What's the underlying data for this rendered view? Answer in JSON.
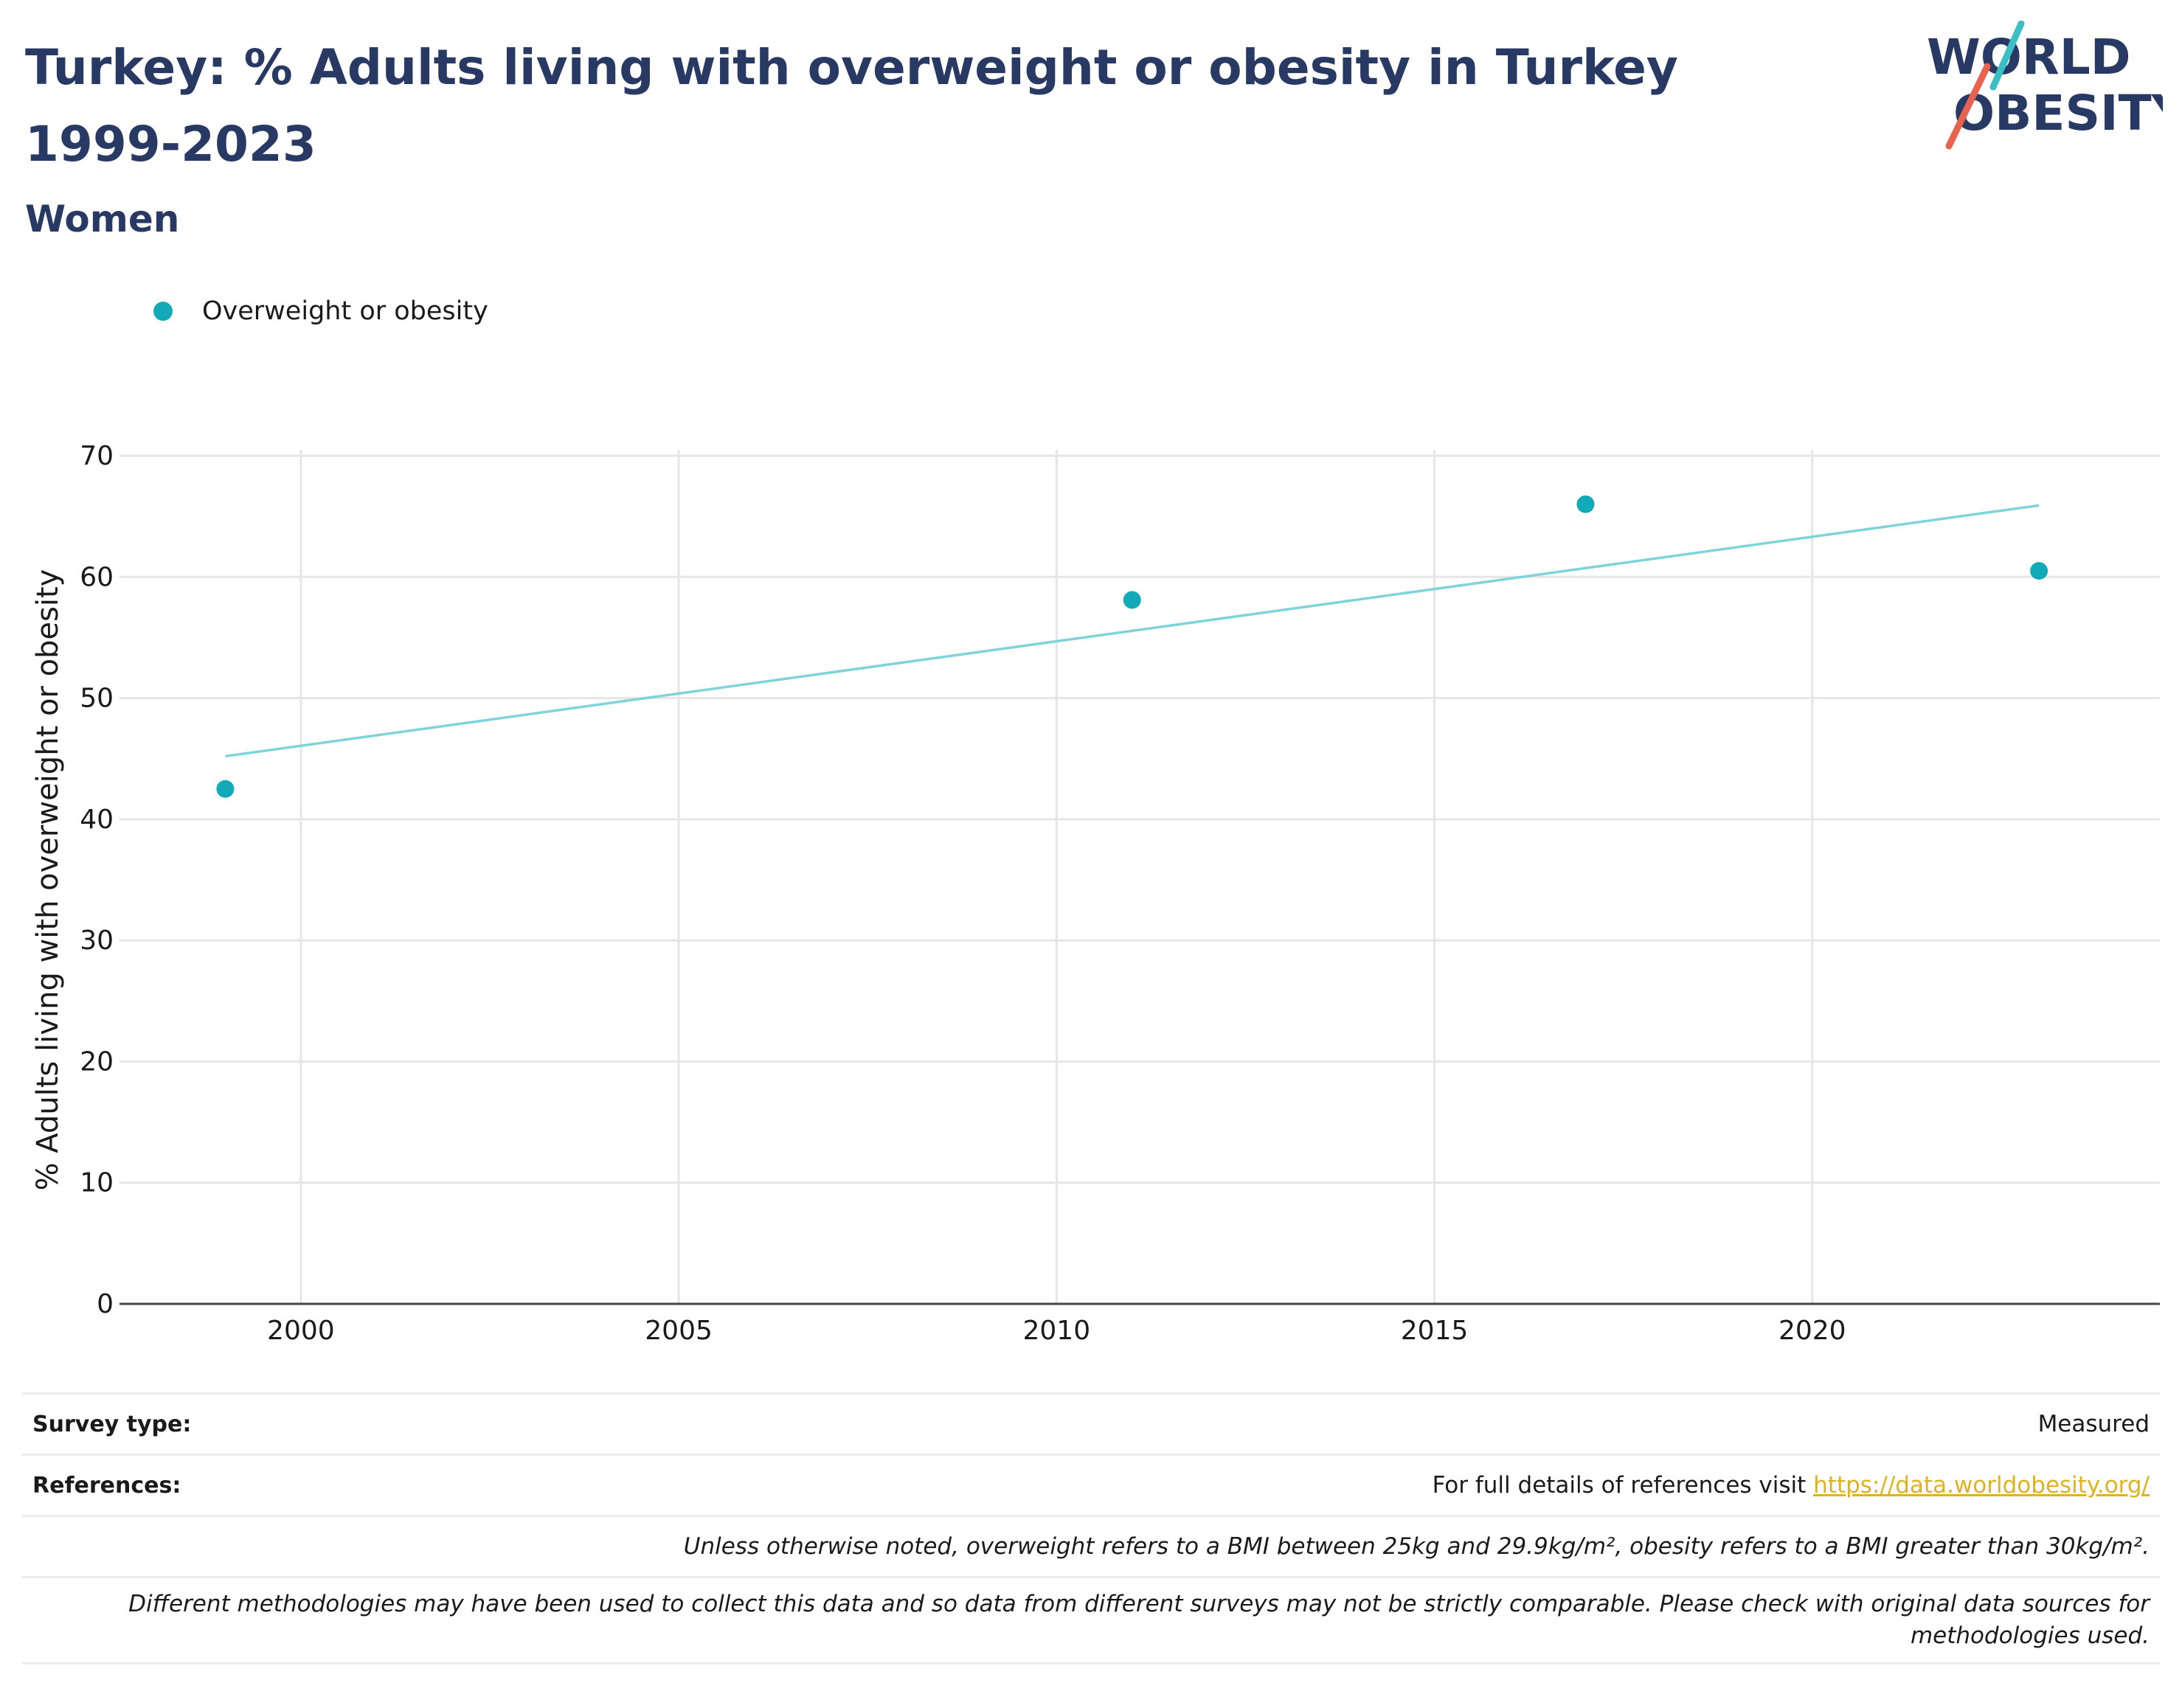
{
  "header": {
    "title": "Turkey: % Adults living with overweight or obesity in Turkey 1999-2023",
    "subtitle": "Women",
    "logo_line1": "WORLD",
    "logo_line2": "OBESITY"
  },
  "legend": {
    "label": "Overweight or obesity"
  },
  "colors": {
    "title": "#283a63",
    "point": "#12aab8",
    "trend": "#7fd3da",
    "link": "#e0b21c"
  },
  "chart_data": {
    "type": "scatter",
    "title": "Turkey: % Adults living with overweight or obesity in Turkey 1999-2023",
    "subtitle": "Women",
    "xlabel": "",
    "ylabel": "% Adults living with overweight or obesity",
    "xlim": [
      1997.6,
      2024.6
    ],
    "ylim": [
      0,
      70
    ],
    "x_ticks": [
      2000,
      2005,
      2010,
      2015,
      2020
    ],
    "y_ticks": [
      0,
      10,
      20,
      30,
      40,
      50,
      60,
      70
    ],
    "grid": true,
    "legend_position": "top-left",
    "series": [
      {
        "name": "Overweight or obesity",
        "x": [
          1999,
          2011,
          2017,
          2023
        ],
        "y": [
          42.5,
          58.1,
          66.0,
          60.5
        ]
      }
    ],
    "trendline": {
      "x": [
        1999,
        2023
      ],
      "y": [
        45.2,
        65.9
      ]
    }
  },
  "footer": {
    "survey_type_label": "Survey type:",
    "survey_type_value": "Measured",
    "references_label": "References:",
    "references_text": "For full details of references visit ",
    "references_link": "https://data.worldobesity.org/",
    "note_bmi": "Unless otherwise noted, overweight refers to a BMI between 25kg and 29.9kg/m², obesity refers to a BMI greater than 30kg/m².",
    "note_methods": "Different methodologies may have been used to collect this data and so data from different surveys may not be strictly comparable. Please check with original data sources for methodologies used."
  }
}
